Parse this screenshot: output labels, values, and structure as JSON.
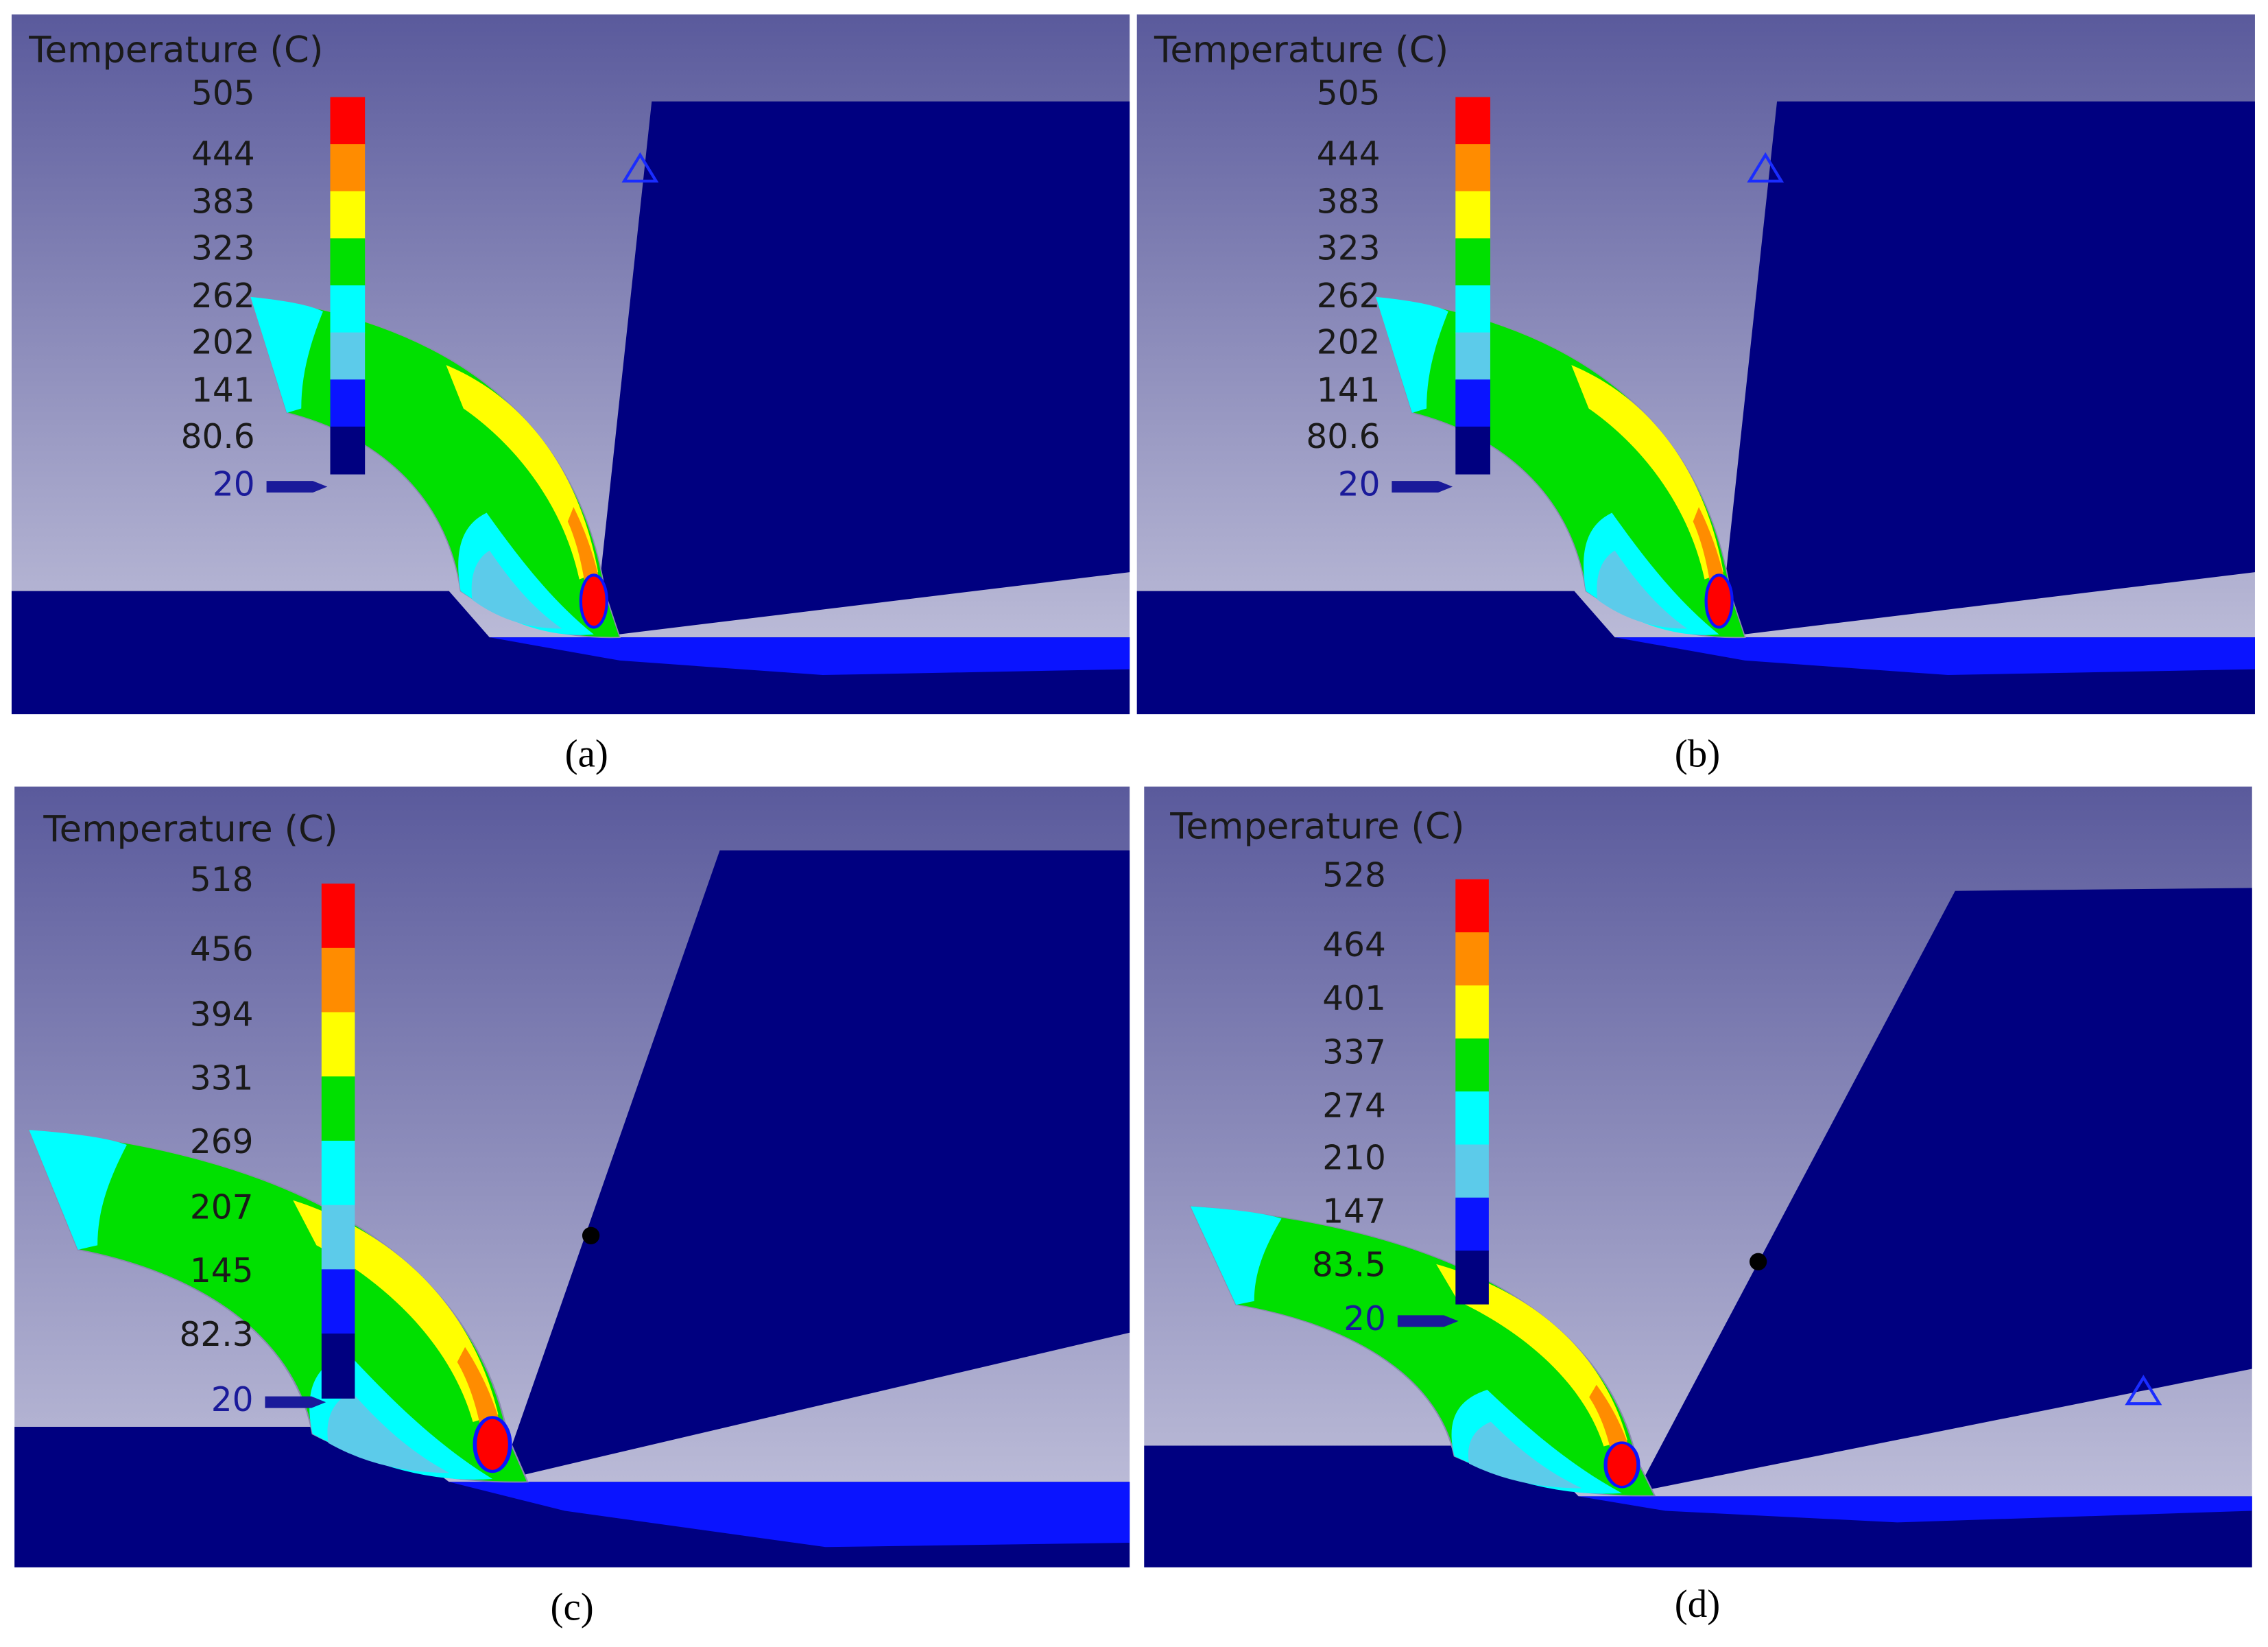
{
  "colormap": [
    "#ff0000",
    "#ff8c00",
    "#ffff00",
    "#00e000",
    "#00ffff",
    "#5ccbea",
    "#0a14ff",
    "#000080"
  ],
  "panels": [
    {
      "legend_title": "Temperature (C)",
      "legend_labels": [
        505,
        444,
        383,
        323,
        262,
        202,
        141,
        80.6,
        20
      ],
      "caption": "(a)"
    },
    {
      "legend_title": "Temperature (C)",
      "legend_labels": [
        505,
        444,
        383,
        323,
        262,
        202,
        141,
        80.6,
        20
      ],
      "caption": "(b)"
    },
    {
      "legend_title": "Temperature (C)",
      "legend_labels": [
        518,
        456,
        394,
        331,
        269,
        207,
        145,
        82.3,
        20
      ],
      "caption": "(c)"
    },
    {
      "legend_title": "Temperature (C)",
      "legend_labels": [
        528,
        464,
        401,
        337,
        274,
        210,
        147,
        83.5,
        20
      ],
      "caption": "(d)"
    }
  ]
}
